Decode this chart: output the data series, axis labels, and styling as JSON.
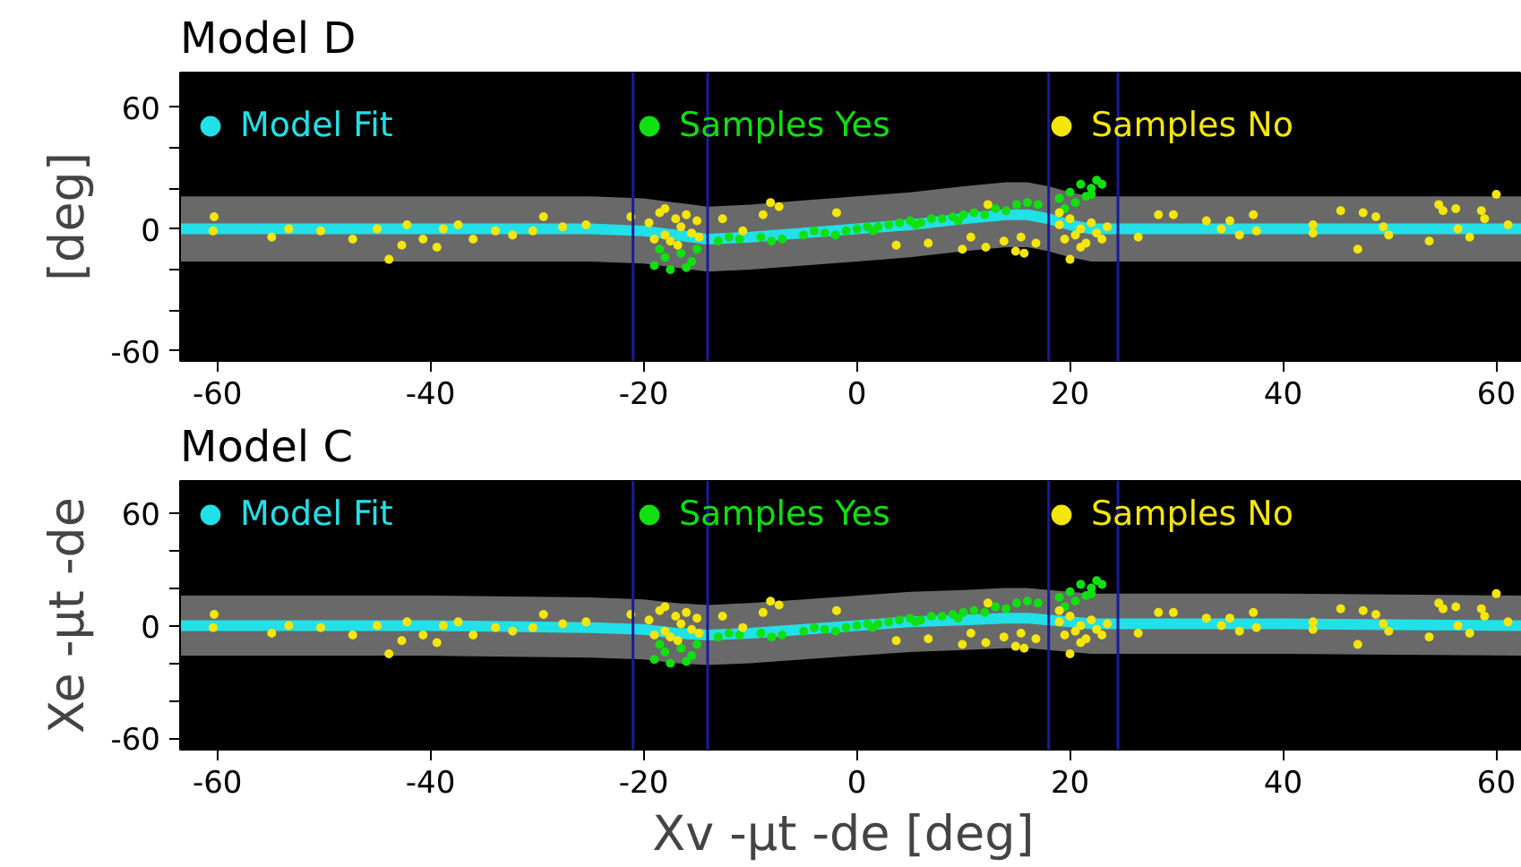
{
  "chart_data": [
    {
      "type": "scatter",
      "title": "Model D",
      "xlim": [
        -63.5,
        62.4
      ],
      "ylim": [
        -65,
        77
      ],
      "xticks": [
        -60,
        -40,
        -20,
        0,
        20,
        40,
        60
      ],
      "yticks": [
        -60,
        {
          "value": -40,
          "label": null
        },
        {
          "value": -20,
          "label": null
        },
        0,
        {
          "value": 20,
          "label": null
        },
        {
          "value": 40,
          "label": null
        },
        60
      ],
      "ylabel": "[deg]",
      "grid": false,
      "legend": "top",
      "marker": "circle",
      "ref_lines": [
        {
          "axis": "x",
          "value": -21,
          "color": "#1a1aa0"
        },
        {
          "axis": "x",
          "value": -14,
          "color": "#1a1aa0"
        },
        {
          "axis": "x",
          "value": 18,
          "color": "#1a1aa0"
        },
        {
          "axis": "x",
          "value": 24.5,
          "color": "#1a1aa0"
        }
      ],
      "series": [
        {
          "name": "Model Fit",
          "type": "line",
          "marker": "none",
          "color": "#22e0e8",
          "x": [
            -63.5,
            -40,
            -25,
            -20,
            -17,
            -14,
            -10,
            -5,
            0,
            5,
            10,
            14,
            16,
            18,
            20,
            22,
            25,
            40,
            62.4
          ],
          "values": [
            0,
            0,
            0,
            -1,
            -3,
            -5,
            -4,
            -2,
            0,
            2,
            5,
            7,
            7,
            5,
            2,
            0,
            0,
            0,
            0
          ],
          "lower": [
            -16,
            -16,
            -16,
            -17,
            -19,
            -21,
            -20,
            -18,
            -16,
            -14,
            -11,
            -9,
            -9,
            -11,
            -14,
            -16,
            -16,
            -16,
            -16
          ],
          "upper": [
            16,
            16,
            16,
            15,
            13,
            11,
            12,
            14,
            16,
            18,
            21,
            23,
            23,
            21,
            18,
            16,
            16,
            16,
            16
          ]
        },
        {
          "name": "Samples Yes",
          "color": "#10e010",
          "x": [
            -19,
            -18,
            -17.5,
            -16.5,
            -15.5,
            -15,
            -18.5,
            -16,
            -13,
            -11,
            -9,
            -7,
            -5,
            -3,
            -1,
            0,
            1,
            2,
            3,
            4,
            5,
            6,
            7,
            8,
            9,
            10,
            11,
            12,
            13,
            14,
            15,
            16,
            17,
            -12,
            -8,
            -4,
            -2,
            1.5,
            5.5,
            9.5,
            19,
            20,
            21,
            22,
            22.5,
            20.5,
            21.5,
            23,
            19.5,
            22
          ],
          "values": [
            -18,
            -14,
            -20,
            -12,
            -16,
            -10,
            -10,
            -19,
            -6,
            -5,
            -4,
            -5,
            -3,
            -2,
            -1,
            0,
            1,
            1,
            2,
            3,
            4,
            3,
            5,
            5,
            6,
            7,
            8,
            7,
            10,
            9,
            12,
            13,
            12,
            -4,
            -6,
            -1,
            -3,
            -1,
            2,
            4,
            15,
            18,
            22,
            20,
            24,
            13,
            16,
            22,
            10,
            17
          ]
        },
        {
          "name": "Samples No",
          "color": "#f5e60a",
          "x": [
            -60.3,
            -60.4,
            -54.9,
            -53.3,
            -50.3,
            -47.3,
            -45,
            -43.9,
            -42.7,
            -42.2,
            -40.7,
            -39.4,
            -38.8,
            -37.4,
            -36,
            -33.9,
            -32.3,
            -30.4,
            -29.4,
            -27.6,
            -25.4,
            -21.2,
            -19.5,
            -18.5,
            -18,
            -17.5,
            -17,
            -16.5,
            -16,
            -15.5,
            -15,
            -19,
            -18,
            -16.8,
            -14.8,
            -12.6,
            -8.1,
            -7.3,
            -8.8,
            -10.7,
            -1.9,
            3.7,
            6.7,
            9.9,
            10.7,
            12.1,
            13.8,
            14.9,
            15.7,
            12.3,
            16.8,
            15.4,
            19,
            19.5,
            20,
            20.5,
            21,
            21.5,
            22,
            22.5,
            23,
            20,
            19,
            23.5,
            21,
            26.4,
            28.3,
            29.7,
            32.8,
            34.2,
            35,
            35.9,
            37.2,
            37.5,
            42.8,
            42.8,
            45.4,
            47,
            47.5,
            48.7,
            49.4,
            49.9,
            53.7,
            54.6,
            55,
            56.2,
            56.4,
            57.5,
            58.6,
            58.9,
            60,
            61.1
          ],
          "values": [
            6,
            -1,
            -4,
            0,
            -1,
            -5,
            0,
            -15,
            -8,
            2,
            -5,
            -9,
            0,
            2,
            -5,
            -1,
            -3,
            -1,
            6,
            1,
            2,
            6,
            3,
            8,
            -3,
            -6,
            5,
            1,
            7,
            -2,
            4,
            -5,
            10,
            -8,
            -4,
            5,
            13,
            11,
            7,
            -1,
            8,
            -8,
            -7,
            -10,
            -4,
            -9,
            -6,
            -11,
            -12,
            12,
            -7,
            -4,
            2,
            -5,
            5,
            -3,
            0,
            -7,
            3,
            -2,
            -5,
            -15,
            8,
            1,
            -9,
            -4,
            7,
            7,
            4,
            0,
            4,
            -3,
            7,
            -1,
            2,
            -2,
            9,
            -10,
            8,
            6,
            1,
            -3,
            -6,
            12,
            9,
            10,
            0,
            -4,
            9,
            5,
            17,
            2
          ]
        }
      ]
    },
    {
      "type": "scatter",
      "title": "Model C",
      "xlim": [
        -63.5,
        62.4
      ],
      "ylim": [
        -66,
        77
      ],
      "xticks": [
        -60,
        -40,
        -20,
        0,
        20,
        40,
        60
      ],
      "yticks": [
        -60,
        {
          "value": -40,
          "label": null
        },
        {
          "value": -20,
          "label": null
        },
        0,
        {
          "value": 20,
          "label": null
        },
        {
          "value": 40,
          "label": null
        },
        60
      ],
      "xlabel": "Xv -µt -de  [deg]",
      "ylabel": "Xe -µt -de",
      "grid": false,
      "legend": "top",
      "marker": "circle",
      "ref_lines": [
        {
          "axis": "x",
          "value": -21,
          "color": "#1a1aa0"
        },
        {
          "axis": "x",
          "value": -14,
          "color": "#1a1aa0"
        },
        {
          "axis": "x",
          "value": 18,
          "color": "#1a1aa0"
        },
        {
          "axis": "x",
          "value": 24.5,
          "color": "#1a1aa0"
        }
      ],
      "series": [
        {
          "name": "Model Fit",
          "type": "line",
          "marker": "none",
          "color": "#22e0e8",
          "x": [
            -63.5,
            -40,
            -25,
            -20,
            -17,
            -14,
            -10,
            -5,
            0,
            5,
            10,
            14,
            16,
            18,
            20,
            22,
            25,
            40,
            62.4
          ],
          "values": [
            0,
            0,
            -1,
            -2,
            -4,
            -5,
            -4,
            -2,
            0,
            2,
            3,
            4,
            4,
            3,
            2,
            1,
            1,
            1,
            0
          ],
          "lower": [
            -16,
            -16,
            -17,
            -18,
            -20,
            -21,
            -20,
            -18,
            -16,
            -14,
            -13,
            -12,
            -12,
            -13,
            -14,
            -15,
            -15,
            -15,
            -16
          ],
          "upper": [
            16,
            16,
            15,
            14,
            12,
            11,
            12,
            14,
            16,
            18,
            19,
            20,
            20,
            19,
            18,
            17,
            17,
            17,
            16
          ]
        },
        {
          "name": "Samples Yes",
          "color": "#10e010",
          "x": [
            -19,
            -18,
            -17.5,
            -16.5,
            -15.5,
            -15,
            -18.5,
            -16,
            -13,
            -11,
            -9,
            -7,
            -5,
            -3,
            -1,
            0,
            1,
            2,
            3,
            4,
            5,
            6,
            7,
            8,
            9,
            10,
            11,
            12,
            13,
            14,
            15,
            16,
            17,
            -12,
            -8,
            -4,
            -2,
            1.5,
            5.5,
            9.5,
            19,
            20,
            21,
            22,
            22.5,
            20.5,
            21.5,
            23,
            19.5,
            22
          ],
          "values": [
            -18,
            -14,
            -20,
            -12,
            -16,
            -10,
            -10,
            -19,
            -6,
            -5,
            -4,
            -5,
            -3,
            -2,
            -1,
            0,
            1,
            1,
            2,
            3,
            4,
            3,
            5,
            5,
            6,
            7,
            8,
            7,
            10,
            9,
            12,
            13,
            12,
            -4,
            -6,
            -1,
            -3,
            -1,
            2,
            4,
            15,
            18,
            22,
            20,
            24,
            13,
            16,
            22,
            10,
            17
          ]
        },
        {
          "name": "Samples No",
          "color": "#f5e60a",
          "x": [
            -60.3,
            -60.4,
            -54.9,
            -53.3,
            -50.3,
            -47.3,
            -45,
            -43.9,
            -42.7,
            -42.2,
            -40.7,
            -39.4,
            -38.8,
            -37.4,
            -36,
            -33.9,
            -32.3,
            -30.4,
            -29.4,
            -27.6,
            -25.4,
            -21.2,
            -19.5,
            -18.5,
            -18,
            -17.5,
            -17,
            -16.5,
            -16,
            -15.5,
            -15,
            -19,
            -18,
            -16.8,
            -14.8,
            -12.6,
            -8.1,
            -7.3,
            -8.8,
            -10.7,
            -1.9,
            3.7,
            6.7,
            9.9,
            10.7,
            12.1,
            13.8,
            14.9,
            15.7,
            12.3,
            16.8,
            15.4,
            19,
            19.5,
            20,
            20.5,
            21,
            21.5,
            22,
            22.5,
            23,
            20,
            19,
            23.5,
            21,
            26.4,
            28.3,
            29.7,
            32.8,
            34.2,
            35,
            35.9,
            37.2,
            37.5,
            42.8,
            42.8,
            45.4,
            47,
            47.5,
            48.7,
            49.4,
            49.9,
            53.7,
            54.6,
            55,
            56.2,
            56.4,
            57.5,
            58.6,
            58.9,
            60,
            61.1
          ],
          "values": [
            6,
            -1,
            -4,
            0,
            -1,
            -5,
            0,
            -15,
            -8,
            2,
            -5,
            -9,
            0,
            2,
            -5,
            -1,
            -3,
            -1,
            6,
            1,
            2,
            6,
            3,
            8,
            -3,
            -6,
            5,
            1,
            7,
            -2,
            4,
            -5,
            10,
            -8,
            -4,
            5,
            13,
            11,
            7,
            -1,
            8,
            -8,
            -7,
            -10,
            -4,
            -9,
            -6,
            -11,
            -12,
            12,
            -7,
            -4,
            2,
            -5,
            5,
            -3,
            0,
            -7,
            3,
            -2,
            -5,
            -15,
            8,
            1,
            -9,
            -4,
            7,
            7,
            4,
            0,
            4,
            -3,
            7,
            -1,
            2,
            -2,
            9,
            -10,
            8,
            6,
            1,
            -3,
            -6,
            12,
            9,
            10,
            0,
            -4,
            9,
            5,
            17,
            2
          ]
        }
      ]
    }
  ]
}
